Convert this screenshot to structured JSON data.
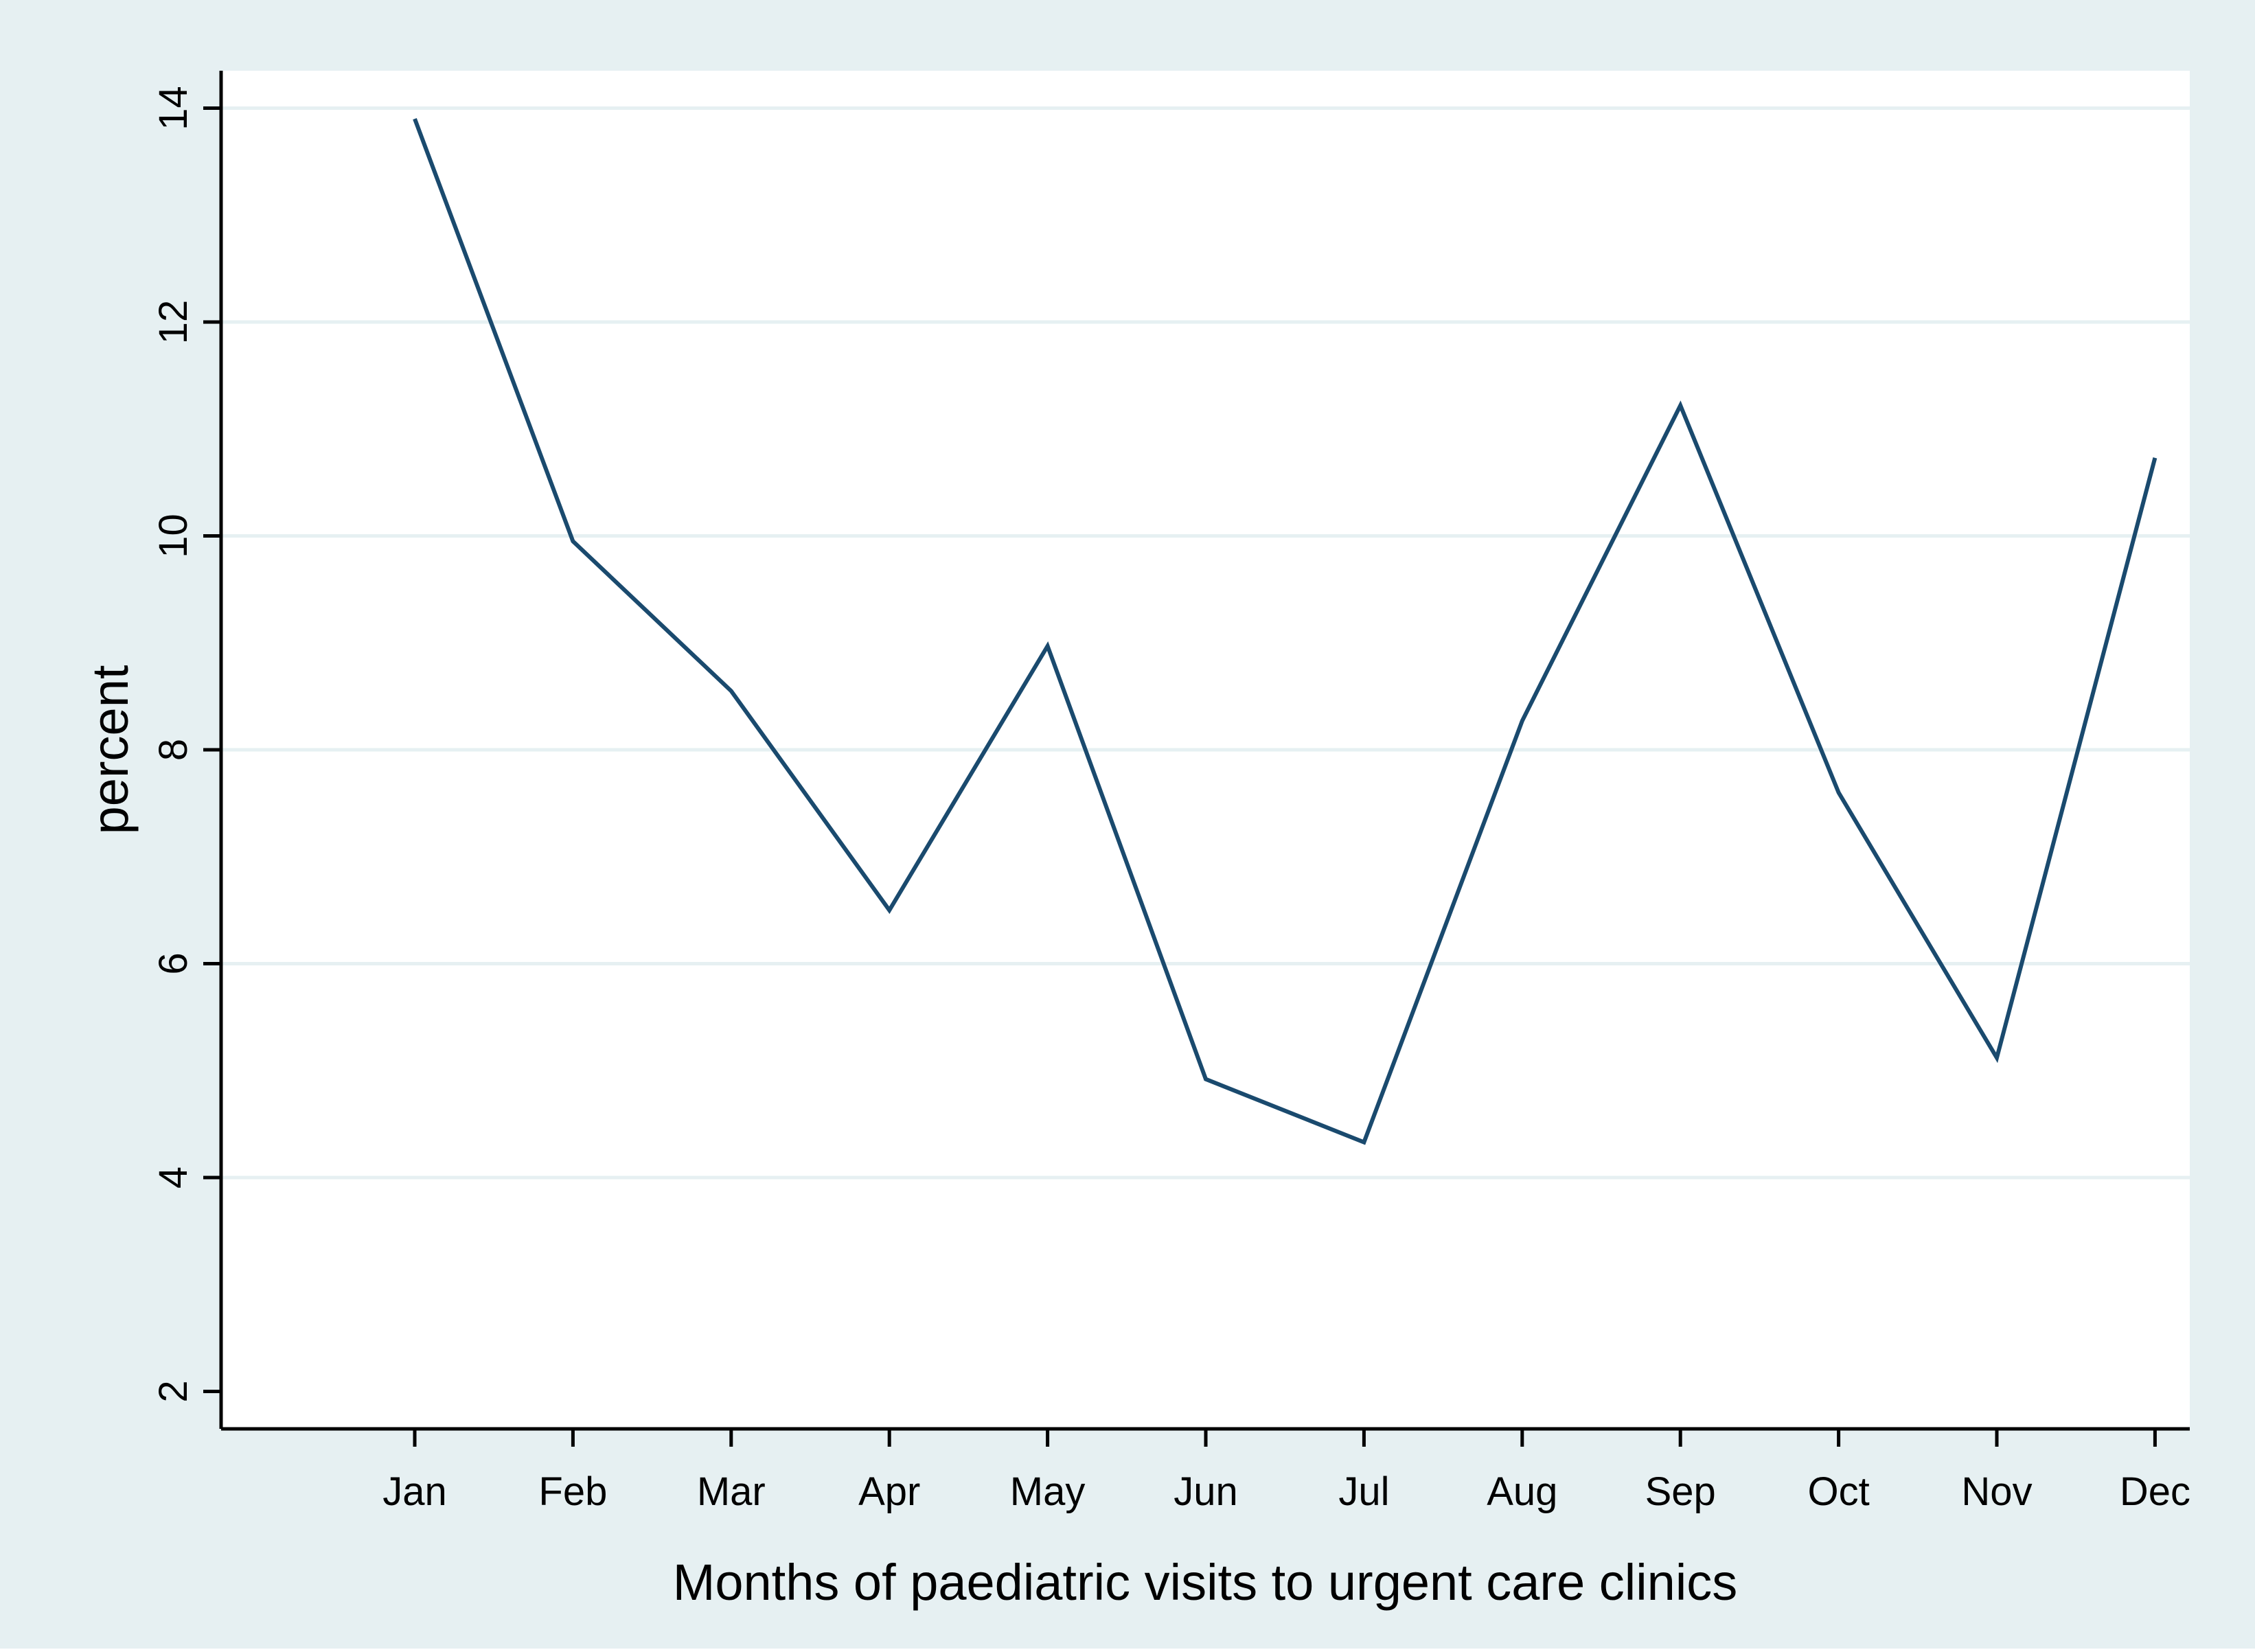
{
  "chart_data": {
    "type": "line",
    "title": "",
    "xlabel": "Months of paediatric visits to urgent care clinics",
    "ylabel": "percent",
    "categories": [
      "Jan",
      "Feb",
      "Mar",
      "Apr",
      "May",
      "Jun",
      "Jul",
      "Aug",
      "Sep",
      "Oct",
      "Nov",
      "Dec"
    ],
    "series": [
      {
        "name": "percent",
        "values": [
          13.9,
          9.95,
          8.55,
          6.5,
          8.97,
          4.92,
          4.33,
          8.27,
          11.22,
          7.6,
          5.12,
          10.73
        ]
      }
    ],
    "ylim": [
      1.65,
      14.35
    ],
    "yticks": [
      2,
      4,
      6,
      8,
      10,
      12,
      14
    ],
    "grid": true,
    "legend": "none",
    "colors": {
      "background_outer": "#e6f0f2",
      "plot_background": "#ffffff",
      "gridline": "#e6f0f2",
      "series_line": "#1a4a6e"
    }
  }
}
